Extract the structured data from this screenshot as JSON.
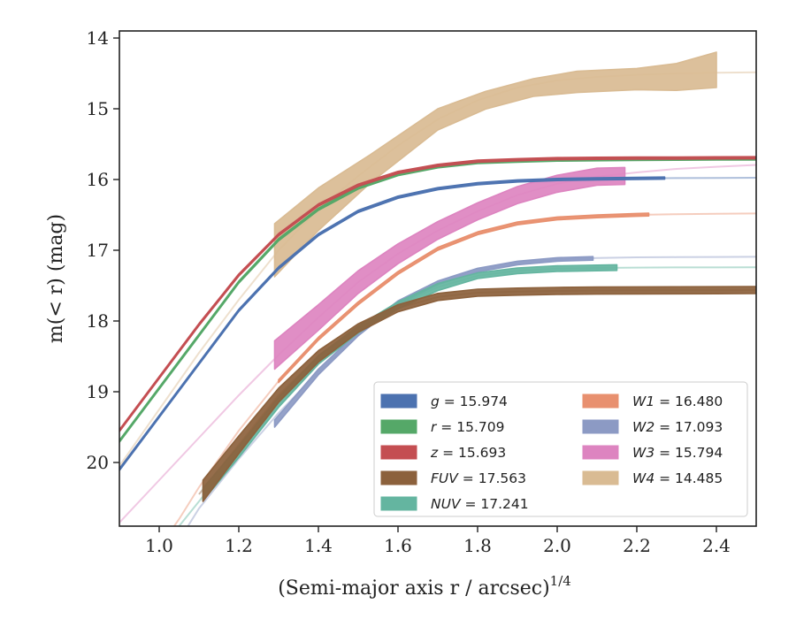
{
  "chart_data": {
    "type": "line",
    "xlabel": "(Semi-major axis r / arcsec)",
    "xlabel_sup": "1/4",
    "ylabel": "m(< r) (mag)",
    "xlim": [
      0.9,
      2.5
    ],
    "ylim": [
      20.9,
      13.9
    ],
    "y_inverted": true,
    "xticks": [
      "1.0",
      "1.2",
      "1.4",
      "1.6",
      "1.8",
      "2.0",
      "2.2",
      "2.4"
    ],
    "yticks": [
      "14",
      "15",
      "16",
      "17",
      "18",
      "19",
      "20"
    ],
    "grid": false,
    "legend_placement": "lower-right",
    "legend_columns": 2,
    "series": [
      {
        "name": "g",
        "label": "g = 15.974",
        "color": "#4c72b0",
        "total": 15.974,
        "model": {
          "x": [
            0.9,
            1.0,
            1.1,
            1.2,
            1.3,
            1.4,
            1.5,
            1.6,
            1.7,
            1.8,
            1.9,
            2.0,
            2.1,
            2.2,
            2.3,
            2.4,
            2.5
          ],
          "y": [
            20.1,
            19.35,
            18.6,
            17.85,
            17.25,
            16.78,
            16.45,
            16.25,
            16.13,
            16.06,
            16.02,
            16.0,
            15.99,
            15.985,
            15.98,
            15.978,
            15.975
          ]
        },
        "obs": {
          "x": [
            0.9,
            1.0,
            1.1,
            1.2,
            1.3,
            1.4,
            1.5,
            1.6,
            1.7,
            1.8,
            1.9,
            2.0,
            2.1,
            2.2,
            2.27
          ],
          "y": [
            20.1,
            19.35,
            18.6,
            17.85,
            17.25,
            16.78,
            16.45,
            16.25,
            16.13,
            16.06,
            16.02,
            16.0,
            15.99,
            15.985,
            15.98
          ],
          "width": [
            0.03,
            0.03,
            0.03,
            0.03,
            0.03,
            0.03,
            0.03,
            0.03,
            0.03,
            0.03,
            0.03,
            0.03,
            0.03,
            0.03,
            0.03
          ]
        }
      },
      {
        "name": "r",
        "label": "r = 15.709",
        "color": "#55a868",
        "total": 15.709,
        "model": {
          "x": [
            0.9,
            1.0,
            1.1,
            1.2,
            1.3,
            1.4,
            1.5,
            1.6,
            1.7,
            1.8,
            1.9,
            2.0,
            2.1,
            2.2,
            2.3,
            2.4,
            2.5
          ],
          "y": [
            19.7,
            18.95,
            18.2,
            17.45,
            16.85,
            16.42,
            16.12,
            15.93,
            15.82,
            15.76,
            15.74,
            15.725,
            15.72,
            15.715,
            15.712,
            15.71,
            15.709
          ]
        },
        "obs": {
          "x": [
            0.9,
            1.0,
            1.1,
            1.2,
            1.3,
            1.4,
            1.5,
            1.6,
            1.7,
            1.8,
            1.9,
            2.0,
            2.1,
            2.2,
            2.3,
            2.4,
            2.5
          ],
          "y": [
            19.7,
            18.95,
            18.2,
            17.45,
            16.85,
            16.42,
            16.12,
            15.93,
            15.82,
            15.76,
            15.74,
            15.725,
            15.72,
            15.715,
            15.712,
            15.71,
            15.709
          ],
          "width": [
            0.03,
            0.03,
            0.03,
            0.03,
            0.03,
            0.03,
            0.03,
            0.03,
            0.03,
            0.03,
            0.03,
            0.03,
            0.03,
            0.03,
            0.03,
            0.03,
            0.03
          ]
        }
      },
      {
        "name": "z",
        "label": "z = 15.693",
        "color": "#c44e52",
        "total": 15.693,
        "model": {
          "x": [
            0.9,
            1.0,
            1.1,
            1.2,
            1.3,
            1.4,
            1.5,
            1.6,
            1.7,
            1.8,
            1.9,
            2.0,
            2.1,
            2.2,
            2.3,
            2.4,
            2.5
          ],
          "y": [
            19.55,
            18.8,
            18.05,
            17.35,
            16.78,
            16.36,
            16.08,
            15.9,
            15.8,
            15.74,
            15.72,
            15.705,
            15.7,
            15.698,
            15.696,
            15.694,
            15.693
          ]
        },
        "obs": {
          "x": [
            0.9,
            1.0,
            1.1,
            1.2,
            1.3,
            1.4,
            1.5,
            1.6,
            1.7,
            1.8,
            1.9,
            2.0,
            2.1,
            2.2,
            2.3,
            2.4,
            2.5
          ],
          "y": [
            19.55,
            18.8,
            18.05,
            17.35,
            16.78,
            16.36,
            16.08,
            15.9,
            15.8,
            15.74,
            15.72,
            15.705,
            15.7,
            15.698,
            15.696,
            15.694,
            15.693
          ],
          "width": [
            0.03,
            0.03,
            0.03,
            0.03,
            0.03,
            0.03,
            0.03,
            0.03,
            0.03,
            0.03,
            0.03,
            0.03,
            0.03,
            0.03,
            0.03,
            0.03,
            0.03
          ]
        }
      },
      {
        "name": "FUV",
        "label": "FUV = 17.563",
        "color": "#8c613c",
        "total": 17.563,
        "model": {
          "x": [
            1.1,
            1.2,
            1.3,
            1.4,
            1.5,
            1.6,
            1.7,
            1.8,
            1.9,
            2.0,
            2.1,
            2.2,
            2.3,
            2.4,
            2.5
          ],
          "y": [
            20.45,
            19.75,
            19.05,
            18.5,
            18.1,
            17.82,
            17.66,
            17.6,
            17.585,
            17.575,
            17.57,
            17.568,
            17.566,
            17.565,
            17.563
          ]
        },
        "obs": {
          "x": [
            1.11,
            1.2,
            1.3,
            1.4,
            1.5,
            1.6,
            1.7,
            1.8,
            1.9,
            2.0,
            2.1,
            2.2,
            2.3,
            2.4,
            2.5
          ],
          "y": [
            20.4,
            19.75,
            19.05,
            18.5,
            18.1,
            17.82,
            17.66,
            17.6,
            17.585,
            17.575,
            17.57,
            17.568,
            17.566,
            17.565,
            17.563
          ],
          "width": [
            0.3,
            0.25,
            0.2,
            0.16,
            0.12,
            0.1,
            0.1,
            0.1,
            0.1,
            0.1,
            0.1,
            0.1,
            0.1,
            0.1,
            0.1
          ]
        }
      },
      {
        "name": "NUV",
        "label": "NUV = 17.241",
        "color": "#64b5a0",
        "total": 17.241,
        "model": {
          "x": [
            0.9,
            1.0,
            1.05,
            1.1,
            1.2,
            1.3,
            1.4,
            1.5,
            1.6,
            1.7,
            1.8,
            1.9,
            2.0,
            2.1,
            2.2,
            2.3,
            2.4,
            2.5
          ],
          "y": [
            22.2,
            21.3,
            20.9,
            20.55,
            19.85,
            19.15,
            18.55,
            18.12,
            17.78,
            17.52,
            17.36,
            17.29,
            17.26,
            17.25,
            17.245,
            17.243,
            17.242,
            17.241
          ]
        },
        "obs": {
          "x": [
            1.11,
            1.2,
            1.3,
            1.4,
            1.5,
            1.6,
            1.7,
            1.8,
            1.9,
            2.0,
            2.1,
            2.15
          ],
          "y": [
            20.45,
            19.85,
            19.15,
            18.55,
            18.12,
            17.78,
            17.52,
            17.36,
            17.29,
            17.26,
            17.25,
            17.245
          ],
          "width": [
            0.18,
            0.16,
            0.14,
            0.12,
            0.1,
            0.1,
            0.1,
            0.08,
            0.08,
            0.08,
            0.08,
            0.08
          ]
        }
      },
      {
        "name": "W1",
        "label": "W1 = 16.480",
        "color": "#e8906f",
        "total": 16.48,
        "model": {
          "x": [
            0.9,
            1.0,
            1.05,
            1.1,
            1.2,
            1.3,
            1.4,
            1.5,
            1.6,
            1.7,
            1.8,
            1.9,
            2.0,
            2.1,
            2.2,
            2.3,
            2.4,
            2.5
          ],
          "y": [
            22.0,
            21.2,
            20.8,
            20.35,
            19.55,
            18.85,
            18.25,
            17.75,
            17.32,
            16.98,
            16.76,
            16.62,
            16.55,
            16.52,
            16.5,
            16.49,
            16.485,
            16.48
          ]
        },
        "obs": {
          "x": [
            1.3,
            1.4,
            1.5,
            1.6,
            1.7,
            1.8,
            1.9,
            2.0,
            2.1,
            2.2,
            2.23
          ],
          "y": [
            18.85,
            18.25,
            17.75,
            17.32,
            16.98,
            16.76,
            16.62,
            16.55,
            16.52,
            16.5,
            16.495
          ],
          "width": [
            0.04,
            0.04,
            0.04,
            0.04,
            0.04,
            0.04,
            0.04,
            0.04,
            0.04,
            0.04,
            0.04
          ]
        }
      },
      {
        "name": "W2",
        "label": "W2 = 17.093",
        "color": "#8c9ac4",
        "total": 17.093,
        "model": {
          "x": [
            0.9,
            1.0,
            1.05,
            1.1,
            1.2,
            1.3,
            1.4,
            1.5,
            1.6,
            1.7,
            1.8,
            1.9,
            2.0,
            2.1,
            2.2,
            2.3,
            2.4,
            2.5
          ],
          "y": [
            22.6,
            21.6,
            21.1,
            20.65,
            19.95,
            19.3,
            18.72,
            18.18,
            17.74,
            17.46,
            17.28,
            17.18,
            17.13,
            17.11,
            17.1,
            17.097,
            17.095,
            17.093
          ]
        },
        "obs": {
          "x": [
            1.29,
            1.4,
            1.5,
            1.6,
            1.7,
            1.8,
            1.9,
            2.0,
            2.09
          ],
          "y": [
            19.45,
            18.72,
            18.18,
            17.74,
            17.46,
            17.28,
            17.18,
            17.13,
            17.115
          ],
          "width": [
            0.1,
            0.08,
            0.06,
            0.05,
            0.05,
            0.05,
            0.05,
            0.05,
            0.05
          ]
        }
      },
      {
        "name": "W3",
        "label": "W3 = 15.794",
        "color": "#dd84c0",
        "total": 15.794,
        "model": {
          "x": [
            0.9,
            1.0,
            1.1,
            1.2,
            1.3,
            1.4,
            1.5,
            1.6,
            1.7,
            1.8,
            1.9,
            2.0,
            2.1,
            2.2,
            2.3,
            2.4,
            2.5
          ],
          "y": [
            20.85,
            20.25,
            19.65,
            19.05,
            18.48,
            17.95,
            17.45,
            17.05,
            16.72,
            16.45,
            16.22,
            16.06,
            15.96,
            15.9,
            15.85,
            15.82,
            15.794
          ]
        },
        "obs": {
          "x": [
            1.29,
            1.4,
            1.5,
            1.6,
            1.7,
            1.8,
            1.9,
            2.0,
            2.1,
            2.17
          ],
          "y": [
            18.48,
            17.95,
            17.45,
            17.05,
            16.72,
            16.45,
            16.22,
            16.06,
            15.96,
            15.95
          ],
          "width": [
            0.4,
            0.36,
            0.32,
            0.28,
            0.25,
            0.24,
            0.24,
            0.24,
            0.24,
            0.24
          ]
        }
      },
      {
        "name": "W4",
        "label": "W4 = 14.485",
        "color": "#d9bb93",
        "total": 14.485,
        "model": {
          "x": [
            0.9,
            1.0,
            1.1,
            1.2,
            1.3,
            1.4,
            1.5,
            1.6,
            1.7,
            1.8,
            1.9,
            2.0,
            2.1,
            2.2,
            2.3,
            2.4,
            2.5
          ],
          "y": [
            20.05,
            19.25,
            18.45,
            17.7,
            17.0,
            16.42,
            15.95,
            15.52,
            15.15,
            14.88,
            14.7,
            14.6,
            14.55,
            14.52,
            14.5,
            14.49,
            14.485
          ]
        },
        "obs": {
          "x": [
            1.29,
            1.4,
            1.53,
            1.7,
            1.82,
            1.94,
            2.05,
            2.2,
            2.3,
            2.4
          ],
          "y": [
            17.0,
            16.42,
            15.85,
            15.15,
            14.88,
            14.7,
            14.62,
            14.58,
            14.55,
            14.45
          ],
          "width": [
            0.75,
            0.6,
            0.4,
            0.3,
            0.25,
            0.25,
            0.3,
            0.3,
            0.38,
            0.5
          ]
        }
      }
    ]
  }
}
